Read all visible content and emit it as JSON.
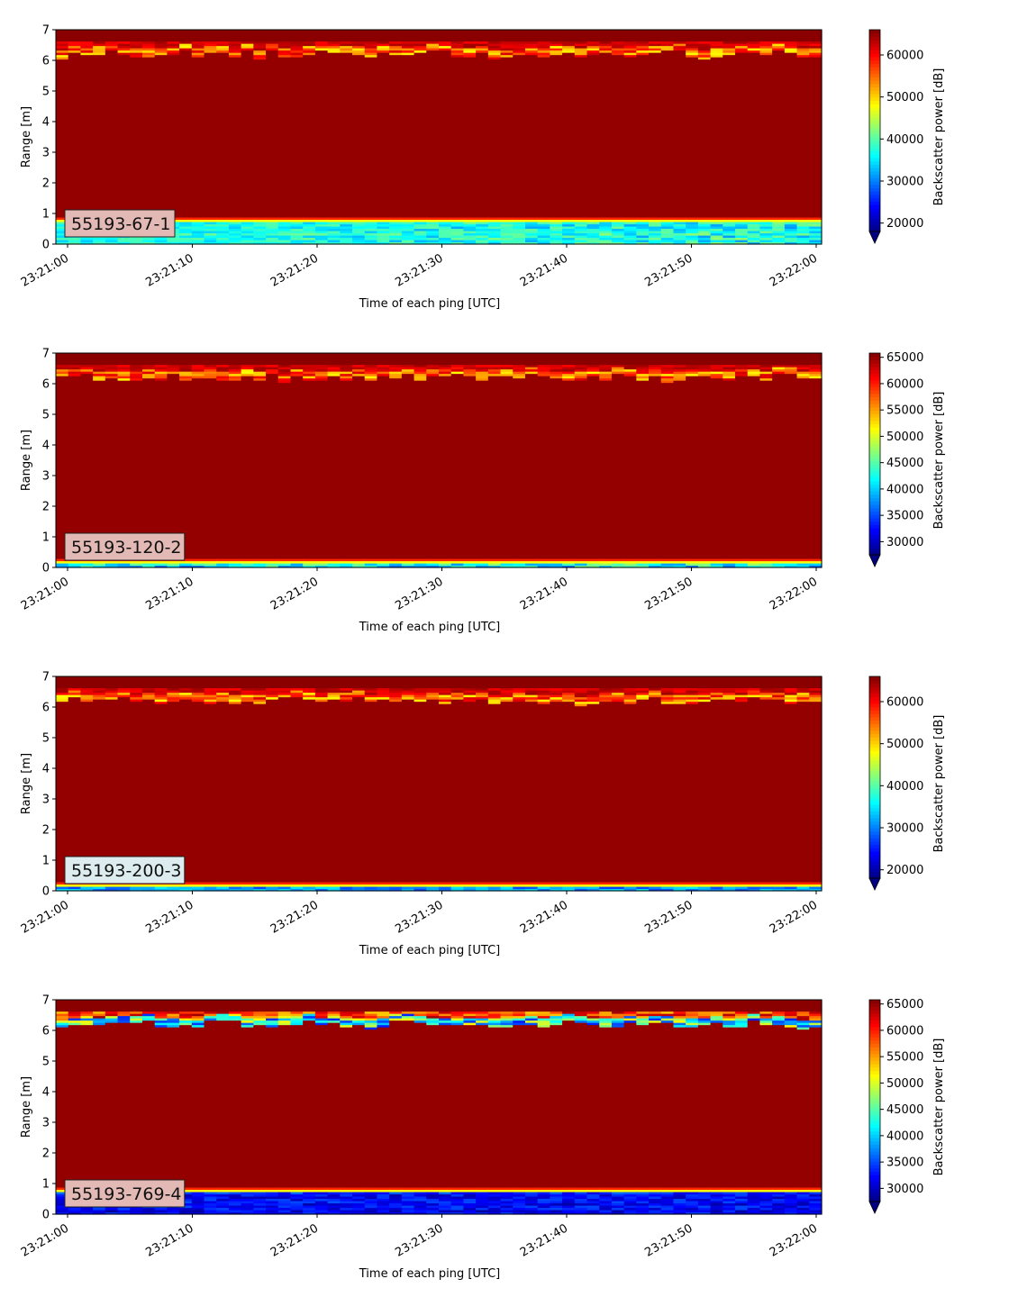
{
  "chart_data": [
    {
      "type": "heatmap",
      "label": "55193-67-1",
      "xlabel": "Time of each ping [UTC]",
      "ylabel": "Range [m]",
      "xlim": [
        "23:21:00",
        "23:22:00"
      ],
      "ylim": [
        0,
        7
      ],
      "x_ticks": [
        "23:21:00",
        "23:21:10",
        "23:21:20",
        "23:21:30",
        "23:21:40",
        "23:21:50",
        "23:22:00"
      ],
      "y_ticks": [
        "0",
        "1",
        "2",
        "3",
        "4",
        "5",
        "6",
        "7"
      ],
      "colorbar": {
        "label": "Backscatter power [dB]",
        "colormap": "jet",
        "extend": "min",
        "vmin": 18000,
        "vmax": 66000,
        "ticks": [
          "20000",
          "30000",
          "40000",
          "50000",
          "60000"
        ]
      },
      "grid": false
    },
    {
      "type": "heatmap",
      "label": "55193-120-2",
      "xlabel": "Time of each ping [UTC]",
      "ylabel": "Range [m]",
      "xlim": [
        "23:21:00",
        "23:22:00"
      ],
      "ylim": [
        0,
        7
      ],
      "x_ticks": [
        "23:21:00",
        "23:21:10",
        "23:21:20",
        "23:21:30",
        "23:21:40",
        "23:21:50",
        "23:22:00"
      ],
      "y_ticks": [
        "0",
        "1",
        "2",
        "3",
        "4",
        "5",
        "6",
        "7"
      ],
      "colorbar": {
        "label": "Backscatter power [dB]",
        "colormap": "jet",
        "extend": "min",
        "vmin": 27500,
        "vmax": 65800,
        "ticks": [
          "30000",
          "35000",
          "40000",
          "45000",
          "50000",
          "55000",
          "60000",
          "65000"
        ]
      },
      "grid": false
    },
    {
      "type": "heatmap",
      "label": "55193-200-3",
      "xlabel": "Time of each ping [UTC]",
      "ylabel": "Range [m]",
      "xlim": [
        "23:21:00",
        "23:22:00"
      ],
      "ylim": [
        0,
        7
      ],
      "x_ticks": [
        "23:21:00",
        "23:21:10",
        "23:21:20",
        "23:21:30",
        "23:21:40",
        "23:21:50",
        "23:22:00"
      ],
      "y_ticks": [
        "0",
        "1",
        "2",
        "3",
        "4",
        "5",
        "6",
        "7"
      ],
      "colorbar": {
        "label": "Backscatter power [dB]",
        "colormap": "jet",
        "extend": "min",
        "vmin": 18000,
        "vmax": 66000,
        "ticks": [
          "20000",
          "30000",
          "40000",
          "50000",
          "60000"
        ]
      },
      "grid": false
    },
    {
      "type": "heatmap",
      "label": "55193-769-4",
      "xlabel": "Time of each ping [UTC]",
      "ylabel": "Range [m]",
      "xlim": [
        "23:21:00",
        "23:22:00"
      ],
      "ylim": [
        0,
        7
      ],
      "x_ticks": [
        "23:21:00",
        "23:21:10",
        "23:21:20",
        "23:21:30",
        "23:21:40",
        "23:21:50",
        "23:22:00"
      ],
      "y_ticks": [
        "0",
        "1",
        "2",
        "3",
        "4",
        "5",
        "6",
        "7"
      ],
      "colorbar": {
        "label": "Backscatter power [dB]",
        "colormap": "jet",
        "extend": "min",
        "vmin": 27500,
        "vmax": 65800,
        "ticks": [
          "30000",
          "35000",
          "40000",
          "45000",
          "50000",
          "55000",
          "60000",
          "65000"
        ]
      },
      "grid": false
    }
  ]
}
